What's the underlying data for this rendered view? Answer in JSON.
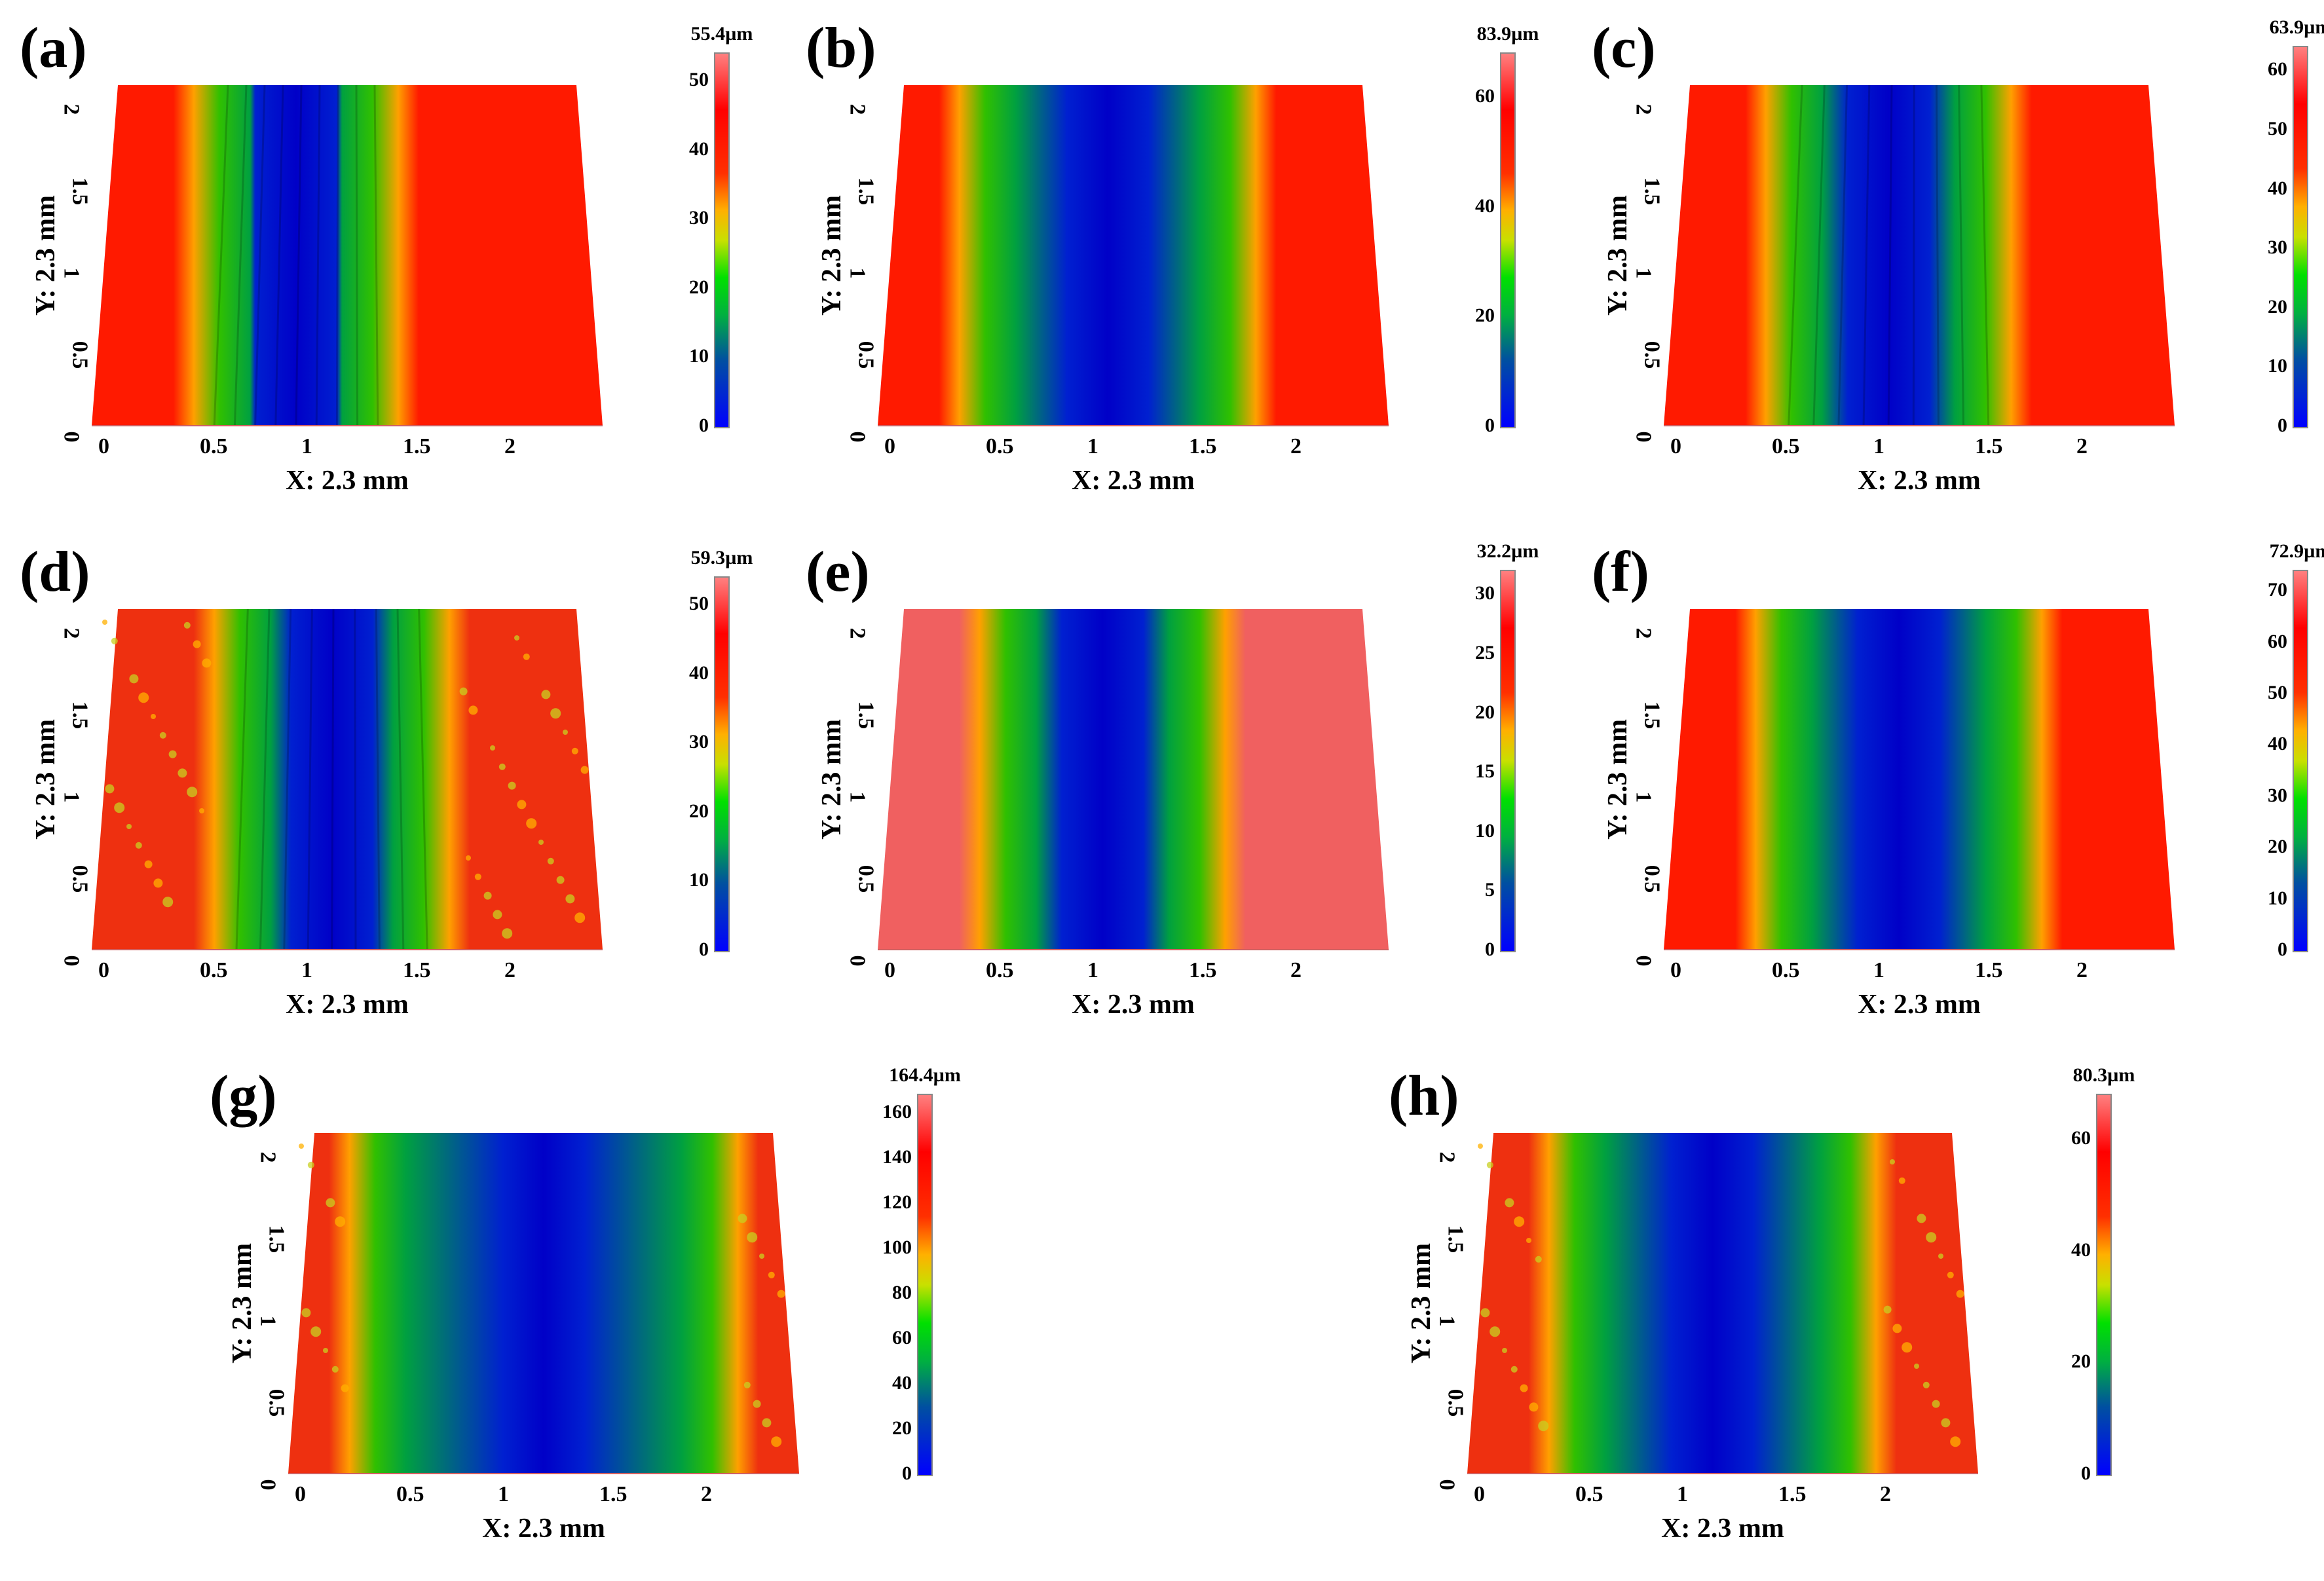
{
  "axis": {
    "x_title": "X: 2.3 mm",
    "y_title": "Y: 2.3 mm"
  },
  "panels": [
    {
      "label": "(a)",
      "cbar_max": "55.4µm",
      "cbar_ticks": [
        "0",
        "10",
        "20",
        "30",
        "40",
        "50"
      ],
      "x_ticks": [
        "0",
        "0.5",
        "1",
        "1.5",
        "2"
      ],
      "y_ticks": [
        "0",
        "0.5",
        "1",
        "1.5",
        "2"
      ]
    },
    {
      "label": "(b)",
      "cbar_max": "83.9µm",
      "cbar_ticks": [
        "0",
        "20",
        "40",
        "60"
      ],
      "x_ticks": [
        "0",
        "0.5",
        "1",
        "1.5",
        "2"
      ],
      "y_ticks": [
        "0",
        "0.5",
        "1",
        "1.5",
        "2"
      ]
    },
    {
      "label": "(c)",
      "cbar_max": "63.9µm",
      "cbar_ticks": [
        "0",
        "10",
        "20",
        "30",
        "40",
        "50",
        "60"
      ],
      "x_ticks": [
        "0",
        "0.5",
        "1",
        "1.5",
        "2"
      ],
      "y_ticks": [
        "0",
        "0.5",
        "1",
        "1.5",
        "2"
      ]
    },
    {
      "label": "(d)",
      "cbar_max": "59.3µm",
      "cbar_ticks": [
        "0",
        "10",
        "20",
        "30",
        "40",
        "50"
      ],
      "x_ticks": [
        "0",
        "0.5",
        "1",
        "1.5",
        "2"
      ],
      "y_ticks": [
        "0",
        "0.5",
        "1",
        "1.5",
        "2"
      ]
    },
    {
      "label": "(e)",
      "cbar_max": "32.2µm",
      "cbar_ticks": [
        "0",
        "5",
        "10",
        "15",
        "20",
        "25",
        "30"
      ],
      "x_ticks": [
        "0",
        "0.5",
        "1",
        "1.5",
        "2"
      ],
      "y_ticks": [
        "0",
        "0.5",
        "1",
        "1.5",
        "2"
      ]
    },
    {
      "label": "(f)",
      "cbar_max": "72.9µm",
      "cbar_ticks": [
        "0",
        "10",
        "20",
        "30",
        "40",
        "50",
        "60",
        "70"
      ],
      "x_ticks": [
        "0",
        "0.5",
        "1",
        "1.5",
        "2"
      ],
      "y_ticks": [
        "0",
        "0.5",
        "1",
        "1.5",
        "2"
      ]
    },
    {
      "label": "(g)",
      "cbar_max": "164.4µm",
      "cbar_ticks": [
        "0",
        "20",
        "40",
        "60",
        "80",
        "100",
        "120",
        "140",
        "160"
      ],
      "x_ticks": [
        "0",
        "0.5",
        "1",
        "1.5",
        "2"
      ],
      "y_ticks": [
        "0",
        "0.5",
        "1",
        "1.5",
        "2"
      ]
    },
    {
      "label": "(h)",
      "cbar_max": "80.3µm",
      "cbar_ticks": [
        "0",
        "20",
        "40",
        "60"
      ],
      "x_ticks": [
        "0",
        "0.5",
        "1",
        "1.5",
        "2"
      ],
      "y_ticks": [
        "0",
        "0.5",
        "1",
        "1.5",
        "2"
      ]
    }
  ],
  "colors": {
    "high": "#ff0000",
    "mid_high": "#ffa000",
    "mid": "#00d000",
    "low": "#0000e0"
  }
}
